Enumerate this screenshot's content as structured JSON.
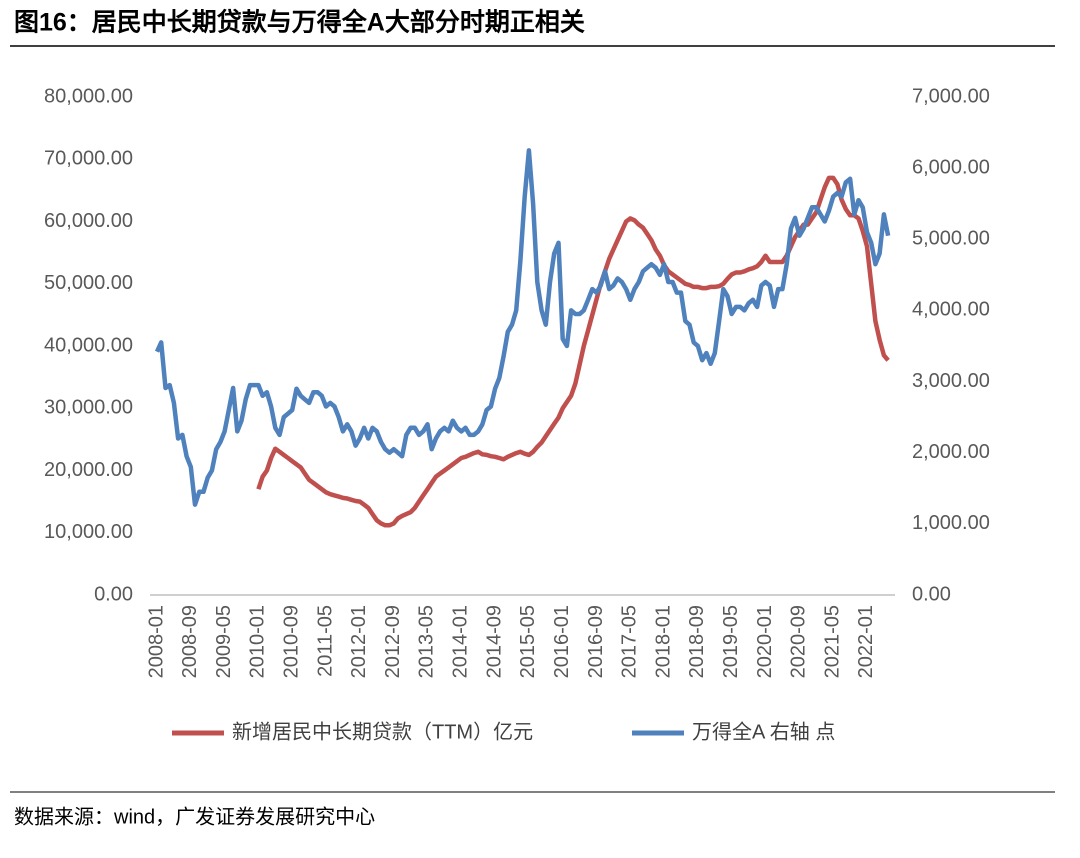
{
  "chart_data": {
    "type": "line",
    "title": "图16：居民中长期贷款与万得全A大部分时期正相关",
    "source": "数据来源：wind，广发证券发展研究中心",
    "categories": [
      "2008-01",
      null,
      null,
      null,
      null,
      null,
      null,
      null,
      "2008-09",
      null,
      null,
      null,
      null,
      null,
      null,
      null,
      "2009-05",
      null,
      null,
      null,
      null,
      null,
      null,
      null,
      "2010-01",
      null,
      null,
      null,
      null,
      null,
      null,
      null,
      "2010-09",
      null,
      null,
      null,
      null,
      null,
      null,
      null,
      "2011-05",
      null,
      null,
      null,
      null,
      null,
      null,
      null,
      "2012-01",
      null,
      null,
      null,
      null,
      null,
      null,
      null,
      "2012-09",
      null,
      null,
      null,
      null,
      null,
      null,
      null,
      "2013-05",
      null,
      null,
      null,
      null,
      null,
      null,
      null,
      "2014-01",
      null,
      null,
      null,
      null,
      null,
      null,
      null,
      "2014-09",
      null,
      null,
      null,
      null,
      null,
      null,
      null,
      "2015-05",
      null,
      null,
      null,
      null,
      null,
      null,
      null,
      "2016-01",
      null,
      null,
      null,
      null,
      null,
      null,
      null,
      "2016-09",
      null,
      null,
      null,
      null,
      null,
      null,
      null,
      "2017-05",
      null,
      null,
      null,
      null,
      null,
      null,
      null,
      "2018-01",
      null,
      null,
      null,
      null,
      null,
      null,
      null,
      "2018-09",
      null,
      null,
      null,
      null,
      null,
      null,
      null,
      "2019-05",
      null,
      null,
      null,
      null,
      null,
      null,
      null,
      "2020-01",
      null,
      null,
      null,
      null,
      null,
      null,
      null,
      "2020-09",
      null,
      null,
      null,
      null,
      null,
      null,
      null,
      "2021-05",
      null,
      null,
      null,
      null,
      null,
      null,
      null,
      "2022-01",
      null,
      null,
      null,
      null,
      null
    ],
    "series": [
      {
        "name": "新增居民中长期贷款（TTM）亿元",
        "color": "#c0504d",
        "values": [
          null,
          null,
          null,
          null,
          null,
          null,
          null,
          null,
          null,
          null,
          null,
          null,
          null,
          null,
          null,
          null,
          null,
          null,
          null,
          null,
          null,
          null,
          null,
          null,
          17000,
          19000,
          20000,
          22000,
          23500,
          23000,
          22500,
          22000,
          21500,
          21000,
          20500,
          19500,
          18500,
          18000,
          17500,
          17000,
          16500,
          16200,
          16000,
          15800,
          15600,
          15500,
          15300,
          15100,
          15000,
          14500,
          14000,
          13000,
          12000,
          11500,
          11200,
          11200,
          11500,
          12300,
          12700,
          13000,
          13300,
          14000,
          15000,
          16000,
          17000,
          18000,
          19000,
          19500,
          20000,
          20500,
          21000,
          21500,
          22000,
          22200,
          22500,
          22800,
          23000,
          22600,
          22500,
          22300,
          22200,
          22000,
          21800,
          22200,
          22500,
          22800,
          23000,
          22700,
          22500,
          23000,
          23800,
          24500,
          25500,
          26500,
          27500,
          28500,
          30000,
          31000,
          32000,
          34000,
          37000,
          40000,
          42500,
          45000,
          47500,
          50000,
          52000,
          54000,
          55500,
          57000,
          58500,
          60000,
          60500,
          60200,
          59500,
          59000,
          58000,
          57000,
          55500,
          54500,
          53000,
          52000,
          51500,
          51000,
          50500,
          50000,
          49800,
          49500,
          49500,
          49300,
          49300,
          49500,
          49500,
          49600,
          50000,
          50800,
          51500,
          51800,
          51800,
          52000,
          52300,
          52500,
          52800,
          53500,
          54500,
          53500,
          53500,
          53500,
          53500,
          54500,
          56000,
          57500,
          58500,
          59500,
          59500,
          60500,
          61500,
          63500,
          65500,
          67000,
          67000,
          66000,
          63500,
          62000,
          61000,
          61000,
          60500,
          58500,
          56000,
          50000,
          44000,
          41000,
          38500,
          37700
        ]
      },
      {
        "name": "万得全A  右轴 点",
        "color": "#4f81bd",
        "axis": "y2",
        "values": [
          3420,
          3550,
          2910,
          2950,
          2700,
          2200,
          2250,
          1950,
          1800,
          1270,
          1450,
          1450,
          1650,
          1750,
          2050,
          2150,
          2300,
          2600,
          2910,
          2300,
          2450,
          2750,
          2950,
          2950,
          2950,
          2800,
          2850,
          2650,
          2350,
          2250,
          2500,
          2550,
          2600,
          2900,
          2800,
          2750,
          2700,
          2850,
          2850,
          2800,
          2650,
          2700,
          2650,
          2500,
          2300,
          2400,
          2300,
          2100,
          2200,
          2350,
          2200,
          2350,
          2300,
          2150,
          2050,
          2000,
          2050,
          2000,
          1950,
          2250,
          2350,
          2350,
          2250,
          2300,
          2400,
          2050,
          2200,
          2300,
          2350,
          2300,
          2450,
          2350,
          2300,
          2350,
          2250,
          2250,
          2300,
          2400,
          2600,
          2650,
          2900,
          3050,
          3350,
          3700,
          3800,
          4000,
          4700,
          5600,
          6250,
          5500,
          4400,
          4000,
          3800,
          4400,
          4800,
          4950,
          3600,
          3500,
          4000,
          3950,
          3950,
          4000,
          4150,
          4300,
          4250,
          4350,
          4550,
          4300,
          4350,
          4450,
          4400,
          4300,
          4150,
          4300,
          4400,
          4550,
          4600,
          4650,
          4600,
          4500,
          4650,
          4400,
          4400,
          4250,
          4250,
          3850,
          3800,
          3550,
          3500,
          3300,
          3400,
          3250,
          3400,
          3850,
          4300,
          4200,
          3950,
          4050,
          4050,
          4000,
          4100,
          4150,
          4050,
          4350,
          4400,
          4350,
          4050,
          4300,
          4300,
          4650,
          5150,
          5300,
          5050,
          5150,
          5300,
          5450,
          5450,
          5350,
          5250,
          5400,
          5600,
          5650,
          5600,
          5800,
          5850,
          5350,
          5550,
          5450,
          5100,
          4950,
          4650,
          4800,
          5350,
          5050
        ]
      }
    ],
    "ylim": [
      0,
      80000
    ],
    "yticks": [
      {
        "value": 0,
        "label": "0.00"
      },
      {
        "value": 10000,
        "label": "10,000.00"
      },
      {
        "value": 20000,
        "label": "20,000.00"
      },
      {
        "value": 30000,
        "label": "30,000.00"
      },
      {
        "value": 40000,
        "label": "40,000.00"
      },
      {
        "value": 50000,
        "label": "50,000.00"
      },
      {
        "value": 60000,
        "label": "60,000.00"
      },
      {
        "value": 70000,
        "label": "70,000.00"
      },
      {
        "value": 80000,
        "label": "80,000.00"
      }
    ],
    "y2lim": [
      0,
      7000
    ],
    "y2ticks": [
      {
        "value": 0,
        "label": "0.00"
      },
      {
        "value": 1000,
        "label": "1,000.00"
      },
      {
        "value": 2000,
        "label": "2,000.00"
      },
      {
        "value": 3000,
        "label": "3,000.00"
      },
      {
        "value": 4000,
        "label": "4,000.00"
      },
      {
        "value": 5000,
        "label": "5,000.00"
      },
      {
        "value": 6000,
        "label": "6,000.00"
      },
      {
        "value": 7000,
        "label": "7,000.00"
      }
    ],
    "grid": false,
    "legend": "bottom"
  }
}
